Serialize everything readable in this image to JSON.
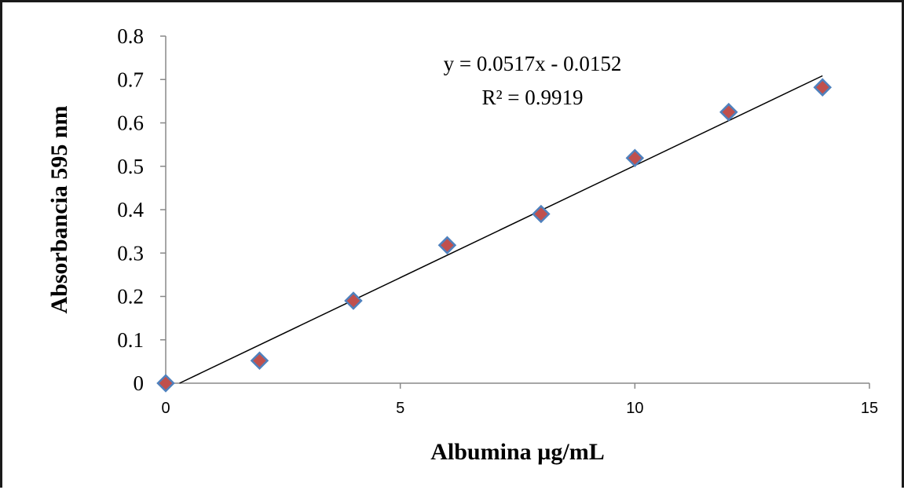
{
  "chart_data": {
    "type": "scatter",
    "title": "",
    "xlabel": "Albumina µg/mL",
    "ylabel": "Absorbancia 595 nm",
    "xlim": [
      0,
      15
    ],
    "ylim": [
      0,
      0.8
    ],
    "x_ticks": [
      "0",
      "5",
      "10",
      "15"
    ],
    "y_ticks": [
      "0",
      "0.1",
      "0.2",
      "0.3",
      "0.4",
      "0.5",
      "0.6",
      "0.7",
      "0.8"
    ],
    "grid": false,
    "legend": "none",
    "series": [
      {
        "x": [
          0,
          2,
          4,
          6,
          8,
          10,
          12,
          14
        ],
        "values": [
          0,
          0.052,
          0.19,
          0.318,
          0.39,
          0.519,
          0.625,
          0.682
        ],
        "marker": "diamond",
        "marker_fill": "#c0504d",
        "marker_edge": "#4f81bd"
      }
    ],
    "trendline": {
      "type": "linear",
      "slope": 0.0517,
      "intercept": -0.0152,
      "x_range": [
        0,
        14
      ],
      "color": "#000000",
      "equation_label": "y = 0.0517x - 0.0152",
      "r2_label": "R² = 0.9919"
    }
  }
}
